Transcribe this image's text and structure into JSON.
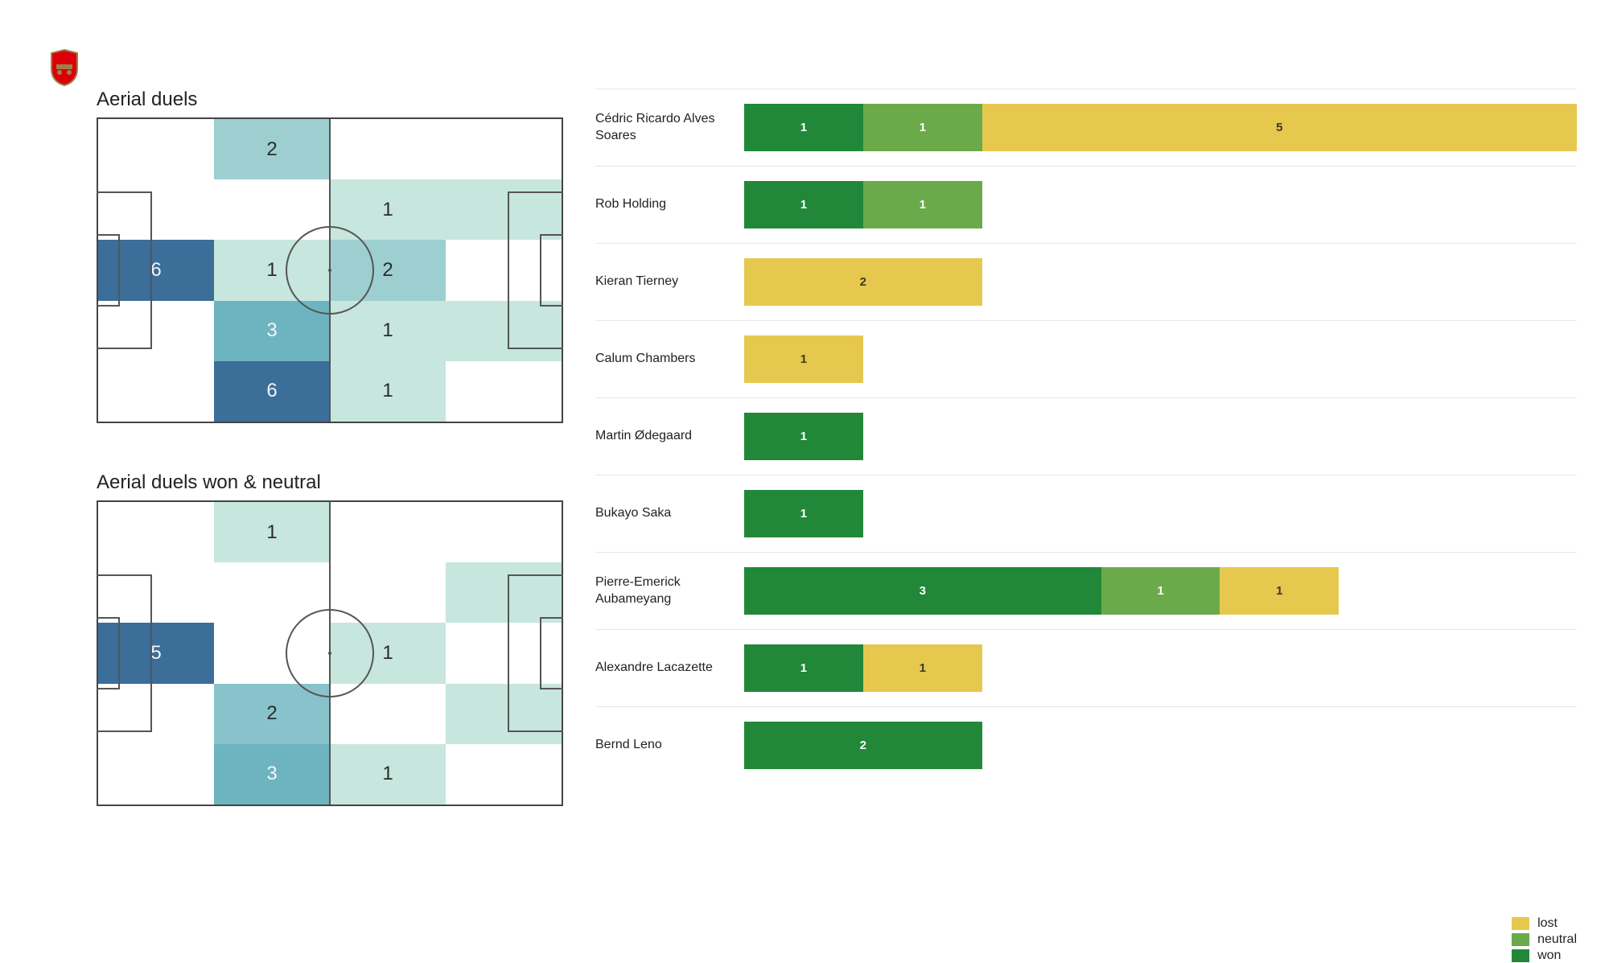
{
  "team_logo": {
    "name": "arsenal-crest",
    "shield_fill": "#db0007",
    "shield_stroke": "#9c824a",
    "cannon_fill": "#9c824a"
  },
  "colors": {
    "won": "#218739",
    "neutral": "#6aaa4a",
    "lost": "#e6c84f",
    "text_on_won": "#ffffff",
    "text_on_neutral": "#ffffff",
    "text_on_lost": "#3a3a2a",
    "grid_line": "#e6e6e6",
    "heat_scale": [
      "#ffffff",
      "#c7e6dd",
      "#9ecfd0",
      "#75b8c3",
      "#4c9fb6",
      "#3b87a8",
      "#2f6e99"
    ]
  },
  "pitches": [
    {
      "title": "Aerial duels",
      "cols": 4,
      "rows": 5,
      "cells": [
        {
          "c": 1,
          "r": 0,
          "v": 2,
          "fill": "#9ecfd0"
        },
        {
          "c": 0,
          "r": 2,
          "v": 6,
          "fill": "#3b6e99"
        },
        {
          "c": 1,
          "r": 2,
          "v": 1,
          "fill": "#c7e6dd"
        },
        {
          "c": 1,
          "r": 3,
          "v": 3,
          "fill": "#6eb4c0"
        },
        {
          "c": 1,
          "r": 4,
          "v": 6,
          "fill": "#3b6e99"
        },
        {
          "c": 2,
          "r": 1,
          "v": 1,
          "fill": "#c7e6dd"
        },
        {
          "c": 2,
          "r": 2,
          "v": 2,
          "fill": "#9ecfd0"
        },
        {
          "c": 2,
          "r": 3,
          "v": 1,
          "fill": "#c7e6dd"
        },
        {
          "c": 2,
          "r": 4,
          "v": 1,
          "fill": "#c7e6dd"
        },
        {
          "c": 3,
          "r": 1,
          "fill": "#c7e6dd"
        },
        {
          "c": 3,
          "r": 3,
          "fill": "#c7e6dd"
        }
      ]
    },
    {
      "title": "Aerial duels won & neutral",
      "cols": 4,
      "rows": 5,
      "cells": [
        {
          "c": 1,
          "r": 0,
          "v": 1,
          "fill": "#c7e6dd"
        },
        {
          "c": 0,
          "r": 2,
          "v": 5,
          "fill": "#3b6e99"
        },
        {
          "c": 1,
          "r": 3,
          "v": 2,
          "fill": "#88c3cb"
        },
        {
          "c": 1,
          "r": 4,
          "v": 3,
          "fill": "#6eb4c0"
        },
        {
          "c": 2,
          "r": 2,
          "v": 1,
          "fill": "#c7e6dd"
        },
        {
          "c": 2,
          "r": 4,
          "v": 1,
          "fill": "#c7e6dd"
        },
        {
          "c": 3,
          "r": 1,
          "fill": "#c7e6dd"
        },
        {
          "c": 3,
          "r": 3,
          "fill": "#c7e6dd"
        }
      ]
    }
  ],
  "bar_chart": {
    "max_value": 7,
    "players": [
      {
        "name": "Cédric Ricardo Alves Soares",
        "won": 1,
        "neutral": 1,
        "lost": 5
      },
      {
        "name": "Rob Holding",
        "won": 1,
        "neutral": 1,
        "lost": 0
      },
      {
        "name": "Kieran Tierney",
        "won": 0,
        "neutral": 0,
        "lost": 2
      },
      {
        "name": "Calum Chambers",
        "won": 0,
        "neutral": 0,
        "lost": 1
      },
      {
        "name": "Martin Ødegaard",
        "won": 1,
        "neutral": 0,
        "lost": 0
      },
      {
        "name": "Bukayo Saka",
        "won": 1,
        "neutral": 0,
        "lost": 0
      },
      {
        "name": "Pierre-Emerick Aubameyang",
        "won": 3,
        "neutral": 1,
        "lost": 1
      },
      {
        "name": "Alexandre Lacazette",
        "won": 1,
        "neutral": 0,
        "lost": 1
      },
      {
        "name": "Bernd Leno",
        "won": 2,
        "neutral": 0,
        "lost": 0
      }
    ],
    "legend": [
      {
        "key": "lost",
        "label": "lost"
      },
      {
        "key": "neutral",
        "label": "neutral"
      },
      {
        "key": "won",
        "label": "won"
      }
    ]
  }
}
